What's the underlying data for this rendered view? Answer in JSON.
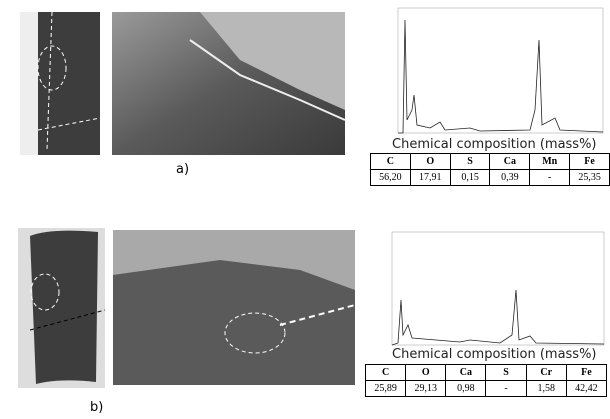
{
  "panel_a": {
    "label": "a)",
    "caption": "Chemical composition (mass%)",
    "table": {
      "header": [
        "C",
        "O",
        "S",
        "Ca",
        "Mn",
        "Fe"
      ],
      "rows": [
        [
          "56,20",
          "17,91",
          "0,15",
          "0,39",
          "-",
          "25,35"
        ]
      ]
    }
  },
  "panel_b": {
    "label": "b)",
    "caption": "Chemical composition (mass%)",
    "table": {
      "header": [
        "C",
        "O",
        "Ca",
        "S",
        "Cr",
        "Fe"
      ],
      "rows": [
        [
          "25,89",
          "29,13",
          "0,98",
          "-",
          "1,58",
          "42,42"
        ]
      ]
    }
  }
}
